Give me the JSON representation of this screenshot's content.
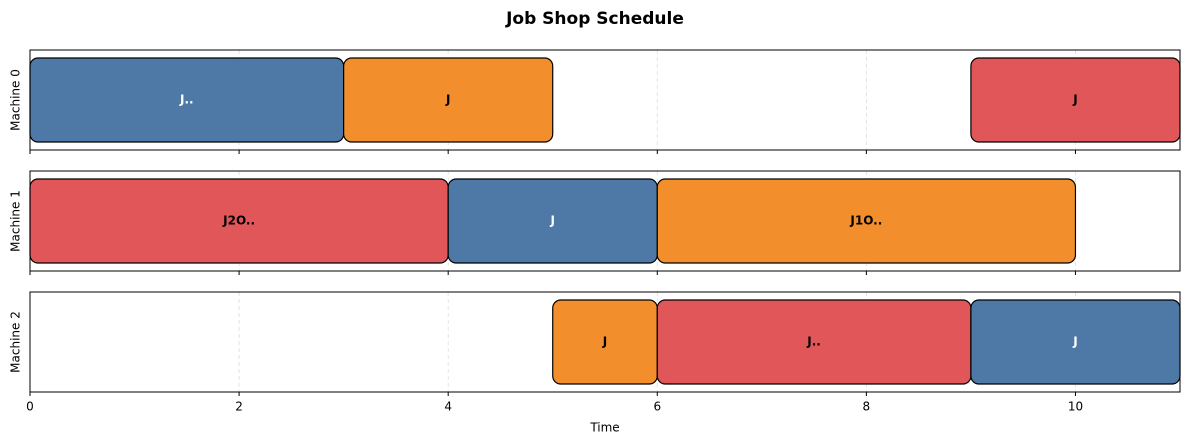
{
  "chart_data": {
    "type": "gantt",
    "title": "Job Shop Schedule",
    "xlabel": "Time",
    "xlim": [
      0,
      11
    ],
    "xticks": [
      0,
      2,
      4,
      6,
      8,
      10
    ],
    "grid": true,
    "rows": [
      {
        "name": "Machine 0",
        "tasks": [
          {
            "label": "J..",
            "start": 0,
            "end": 3,
            "color": "#4e79a7",
            "text_color": "#ffffff"
          },
          {
            "label": "J",
            "start": 3,
            "end": 5,
            "color": "#f28e2b",
            "text_color": "#000000"
          },
          {
            "label": "J",
            "start": 9,
            "end": 11,
            "color": "#e15759",
            "text_color": "#000000"
          }
        ]
      },
      {
        "name": "Machine 1",
        "tasks": [
          {
            "label": "J2O..",
            "start": 0,
            "end": 4,
            "color": "#e15759",
            "text_color": "#000000"
          },
          {
            "label": "J",
            "start": 4,
            "end": 6,
            "color": "#4e79a7",
            "text_color": "#ffffff"
          },
          {
            "label": "J1O..",
            "start": 6,
            "end": 10,
            "color": "#f28e2b",
            "text_color": "#000000"
          }
        ]
      },
      {
        "name": "Machine 2",
        "tasks": [
          {
            "label": "J",
            "start": 5,
            "end": 6,
            "color": "#f28e2b",
            "text_color": "#000000"
          },
          {
            "label": "J..",
            "start": 6,
            "end": 9,
            "color": "#e15759",
            "text_color": "#000000"
          },
          {
            "label": "J",
            "start": 9,
            "end": 11,
            "color": "#4e79a7",
            "text_color": "#ffffff"
          }
        ]
      }
    ]
  }
}
